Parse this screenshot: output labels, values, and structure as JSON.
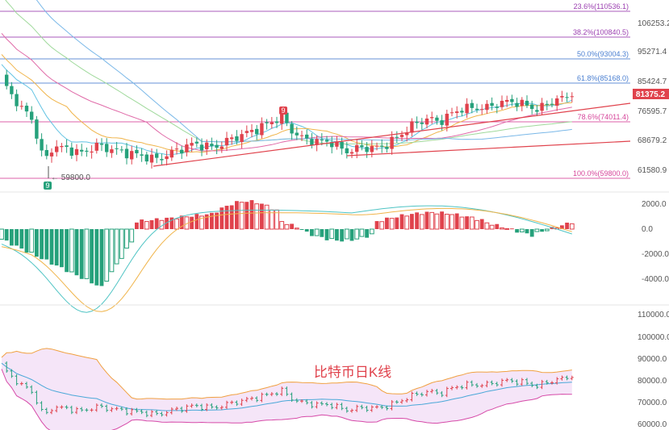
{
  "chart_data": [
    {
      "type": "candlestick",
      "panel": "main",
      "y_ticks": [
        "106253.2",
        "95271.4",
        "85424.7",
        "76595.7",
        "68679.2",
        "61580.9"
      ],
      "current_price": "81375.2",
      "low_marker": "59800.0",
      "fib_levels": [
        {
          "label": "23.6%(110536.1)",
          "value": 110536.1,
          "color": "#9b3fb0"
        },
        {
          "label": "38.2%(100840.5)",
          "value": 100840.5,
          "color": "#9b3fb0"
        },
        {
          "label": "50.0%(93004.3)",
          "value": 93004.3,
          "color": "#4a7fd1"
        },
        {
          "label": "61.8%(85168.0)",
          "value": 85168.0,
          "color": "#4a7fd1"
        },
        {
          "label": "78.6%(74011.4)",
          "value": 74011.4,
          "color": "#d6469a"
        },
        {
          "label": "100.0%(59800.0)",
          "value": 59800.0,
          "color": "#d6469a"
        }
      ],
      "td_markers": [
        {
          "label": "9",
          "position": "top",
          "color": "#e0424c"
        },
        {
          "label": "9",
          "position": "bottom",
          "color": "#26a17b"
        }
      ],
      "up_color": "#e0424c",
      "down_color": "#26a17b",
      "ma_colors": [
        "#62c3e3",
        "#f0b44a",
        "#e06aa8",
        "#9fd99b",
        "#7ab8e8"
      ],
      "trendline_color": "#e0424c"
    },
    {
      "type": "macd",
      "panel": "macd",
      "y_ticks": [
        "2000.0",
        "0.0",
        "-2000.0",
        "-4000.0"
      ],
      "line_colors": {
        "dif": "#4fc4c4",
        "dea": "#f0b44a"
      }
    },
    {
      "type": "candlestick_bollinger",
      "panel": "boll",
      "y_ticks": [
        "110000.0",
        "100000.0",
        "90000.0",
        "80000.0",
        "70000.0",
        "60000.0"
      ],
      "annotation": "比特币日K线",
      "band_colors": {
        "upper": "#f0a040",
        "middle": "#4aa8d8",
        "lower": "#d64aa8",
        "fill": "#f2dcf5"
      }
    }
  ]
}
